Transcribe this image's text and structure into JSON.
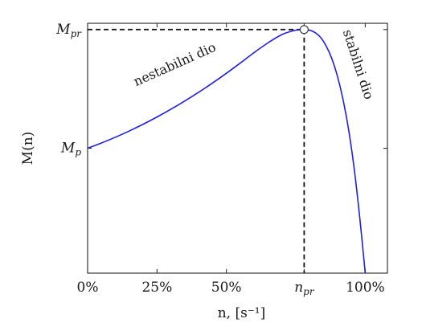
{
  "chart_data": {
    "type": "line",
    "xlabel": "n, [s⁻¹]",
    "ylabel": "M(n)",
    "x_ticks": [
      {
        "value": 0,
        "label": "0%"
      },
      {
        "value": 25,
        "label": "25%"
      },
      {
        "value": 50,
        "label": "50%"
      },
      {
        "value": 78,
        "label": "n_pr",
        "base": "n",
        "sub": "pr"
      },
      {
        "value": 100,
        "label": "100%"
      }
    ],
    "y_ticks": [
      {
        "value": 1.0,
        "label": "M_p",
        "base": "M",
        "sub": "p"
      },
      {
        "value": 1.95,
        "label": "M_pr",
        "base": "M",
        "sub": "pr"
      }
    ],
    "xlim": [
      0,
      108
    ],
    "ylim": [
      0.0,
      2.0
    ],
    "series": [
      {
        "color": "#1f1fe6",
        "x": [
          0,
          5,
          10,
          15,
          20,
          25,
          30,
          35,
          40,
          45,
          50,
          55,
          60,
          65,
          70,
          74,
          76,
          78,
          80,
          82,
          84,
          86,
          88,
          90,
          92,
          94,
          96,
          98,
          100
        ],
        "y": [
          1.0,
          1.042,
          1.088,
          1.138,
          1.192,
          1.25,
          1.312,
          1.378,
          1.448,
          1.522,
          1.6,
          1.682,
          1.766,
          1.844,
          1.91,
          1.94,
          1.947,
          1.95,
          1.945,
          1.925,
          1.885,
          1.815,
          1.715,
          1.575,
          1.39,
          1.15,
          0.84,
          0.45,
          0.0
        ]
      }
    ],
    "peak": {
      "x": 78,
      "y": 1.95
    },
    "annotations": [
      {
        "text": "nestabilni dio",
        "x": 32,
        "y": 1.64
      },
      {
        "text": "stabilni dio",
        "x": 96,
        "y": 1.66
      }
    ],
    "grid": false
  }
}
